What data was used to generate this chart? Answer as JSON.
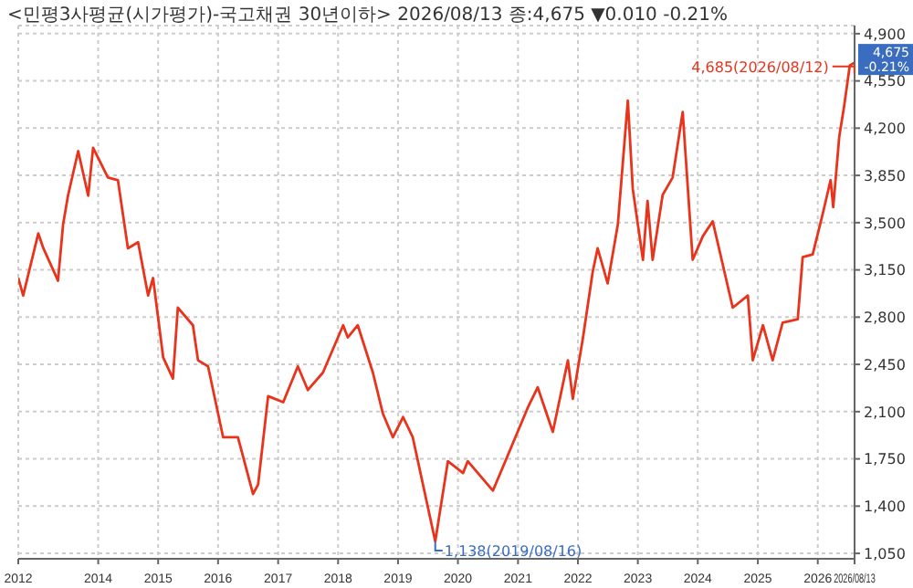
{
  "chart_data": {
    "type": "line",
    "title": "<민평3사평균(시가평가)-국고채권 30년이하> 2026/08/13 종:4,675 ▼0.010 -0.21%",
    "x": [
      "2012-09",
      "2012-10",
      "2013-01",
      "2013-02",
      "2013-05",
      "2013-06",
      "2013-07",
      "2013-09",
      "2013-11",
      "2013-12",
      "2014-03",
      "2014-05",
      "2014-07",
      "2014-09",
      "2014-11",
      "2014-12",
      "2015-02",
      "2015-04",
      "2015-05",
      "2015-08",
      "2015-09",
      "2015-11",
      "2016-02",
      "2016-05",
      "2016-08",
      "2016-09",
      "2016-11",
      "2017-02",
      "2017-05",
      "2017-07",
      "2017-10",
      "2018-02",
      "2018-03",
      "2018-05",
      "2018-08",
      "2018-10",
      "2018-12",
      "2019-02",
      "2019-04",
      "2019-08-16",
      "2019-11",
      "2020-02",
      "2020-03",
      "2020-08",
      "2020-10",
      "2021-03",
      "2021-05",
      "2021-08",
      "2021-11",
      "2021-12",
      "2022-02",
      "2022-04",
      "2022-05",
      "2022-07",
      "2022-09",
      "2022-11",
      "2022-12",
      "2023-02",
      "2023-03",
      "2023-04",
      "2023-06",
      "2023-08",
      "2023-10",
      "2023-12",
      "2024-02",
      "2024-04",
      "2024-08",
      "2024-11",
      "2024-12",
      "2025-02",
      "2025-04",
      "2025-06",
      "2025-09",
      "2025-10",
      "2025-12",
      "2026-02",
      "2026-03-20",
      "2026-04-05",
      "2026-05-12",
      "2026-06-10",
      "2026-07-15",
      "2026-08-12",
      "2026-08-13"
    ],
    "series": [
      {
        "color": "#e8341c",
        "values": [
          3091,
          2960,
          3420,
          3310,
          3070,
          3485,
          3700,
          4030,
          3700,
          4055,
          3835,
          3815,
          3310,
          3355,
          2960,
          3090,
          2500,
          2345,
          2870,
          2740,
          2480,
          2435,
          1910,
          1910,
          1490,
          1560,
          2215,
          2170,
          2435,
          2260,
          2390,
          2740,
          2650,
          2740,
          2390,
          2085,
          1910,
          2060,
          1910,
          1138,
          1733,
          1645,
          1733,
          1515,
          1690,
          2128,
          2280,
          1950,
          2480,
          2195,
          2650,
          3135,
          3310,
          3050,
          3485,
          4405,
          3750,
          3225,
          3660,
          3225,
          3705,
          3835,
          4320,
          3225,
          3400,
          3510,
          2870,
          2960,
          2480,
          2740,
          2480,
          2760,
          2785,
          3245,
          3265,
          3570,
          3815,
          3615,
          4140,
          4360,
          4665,
          4685,
          4675
        ]
      }
    ],
    "xlim": [
      "2012-09",
      "2026-08-13"
    ],
    "xticks": [
      {
        "value": "2012-09",
        "label": "2012"
      },
      {
        "value": "2014-01",
        "label": "2014"
      },
      {
        "value": "2015-01",
        "label": "2015"
      },
      {
        "value": "2016-01",
        "label": "2016"
      },
      {
        "value": "2017-01",
        "label": "2017"
      },
      {
        "value": "2018-01",
        "label": "2018"
      },
      {
        "value": "2019-01",
        "label": "2019"
      },
      {
        "value": "2020-01",
        "label": "2020"
      },
      {
        "value": "2021-01",
        "label": "2021"
      },
      {
        "value": "2022-01",
        "label": "2022"
      },
      {
        "value": "2023-01",
        "label": "2023"
      },
      {
        "value": "2024-01",
        "label": "2024"
      },
      {
        "value": "2025-01",
        "label": "2025"
      },
      {
        "value": "2026-01",
        "label": "2026"
      },
      {
        "value": "2026-08-13",
        "label": "2026/08/13"
      }
    ],
    "ylim": [
      1010,
      4960
    ],
    "yticks": [
      {
        "value": 1050,
        "label": "1,050"
      },
      {
        "value": 1400,
        "label": "1,400"
      },
      {
        "value": 1750,
        "label": "1,750"
      },
      {
        "value": 2100,
        "label": "2,100"
      },
      {
        "value": 2450,
        "label": "2,450"
      },
      {
        "value": 2800,
        "label": "2,800"
      },
      {
        "value": 3150,
        "label": "3,150"
      },
      {
        "value": 3500,
        "label": "3,500"
      },
      {
        "value": 3850,
        "label": "3,850"
      },
      {
        "value": 4200,
        "label": "4,200"
      },
      {
        "value": 4550,
        "label": "4,550"
      },
      {
        "value": 4900,
        "label": "4,900"
      }
    ],
    "annotations": [
      {
        "text": "4,685(2026/08/12)",
        "x": "2026-08-12",
        "y": 4685
      },
      {
        "text": "1,138(2019/08/16)",
        "x": "2019-08-16",
        "y": 1138
      },
      {
        "text": "4,675 -0.21%",
        "x": "2026-08-13",
        "y": 4675
      }
    ],
    "grid": true,
    "marker": "none",
    "line_style": "solid"
  }
}
